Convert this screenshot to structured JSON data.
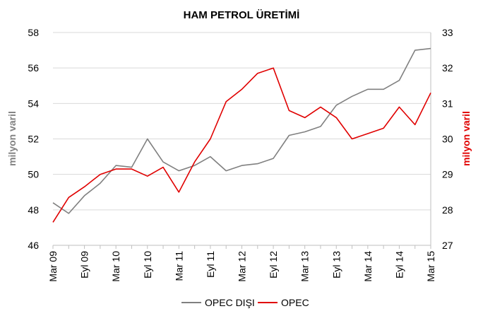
{
  "chart_data": {
    "type": "line",
    "title": "HAM PETROL ÜRETİMİ",
    "ylabel": "milyon varil",
    "y2label": "milyon varil",
    "ylim": [
      46,
      58
    ],
    "y2lim": [
      27,
      33
    ],
    "yticks": [
      "46",
      "48",
      "50",
      "52",
      "54",
      "56",
      "58"
    ],
    "y2ticks": [
      "27",
      "28",
      "29",
      "30",
      "31",
      "32",
      "33"
    ],
    "xtick_labels": [
      "Mar 09",
      "Eyl 09",
      "Mar 10",
      "Eyl 10",
      "Mar 11",
      "Eyl 11",
      "Mar 12",
      "Eyl 12",
      "Mar 13",
      "Eyl 13",
      "Mar 14",
      "Eyl 14",
      "Mar 15"
    ],
    "x": [
      "Mar 09",
      "Haz 09",
      "Eyl 09",
      "Ara 09",
      "Mar 10",
      "Haz 10",
      "Eyl 10",
      "Ara 10",
      "Mar 11",
      "Haz 11",
      "Eyl 11",
      "Ara 11",
      "Mar 12",
      "Haz 12",
      "Eyl 12",
      "Ara 12",
      "Mar 13",
      "Haz 13",
      "Eyl 13",
      "Ara 13",
      "Mar 14",
      "Haz 14",
      "Eyl 14",
      "Ara 14",
      "Mar 15"
    ],
    "legend_position": "bottom",
    "grid": true,
    "series": [
      {
        "name": "OPEC DIŞI",
        "axis": "left",
        "color": "#808080",
        "values": [
          48.4,
          47.8,
          48.8,
          49.5,
          50.5,
          50.4,
          52.0,
          50.7,
          50.2,
          50.5,
          51.0,
          50.2,
          50.5,
          50.6,
          50.9,
          52.2,
          52.4,
          52.7,
          53.9,
          54.4,
          54.8,
          54.8,
          55.3,
          57.0,
          57.1
        ]
      },
      {
        "name": "OPEC",
        "axis": "right",
        "color": "#e00000",
        "values": [
          27.65,
          28.35,
          28.65,
          29.0,
          29.15,
          29.15,
          28.95,
          29.2,
          28.5,
          29.35,
          30.0,
          31.05,
          31.4,
          31.85,
          32.0,
          30.8,
          30.6,
          30.9,
          30.6,
          30.0,
          30.15,
          30.3,
          30.9,
          30.4,
          31.3
        ]
      }
    ]
  }
}
